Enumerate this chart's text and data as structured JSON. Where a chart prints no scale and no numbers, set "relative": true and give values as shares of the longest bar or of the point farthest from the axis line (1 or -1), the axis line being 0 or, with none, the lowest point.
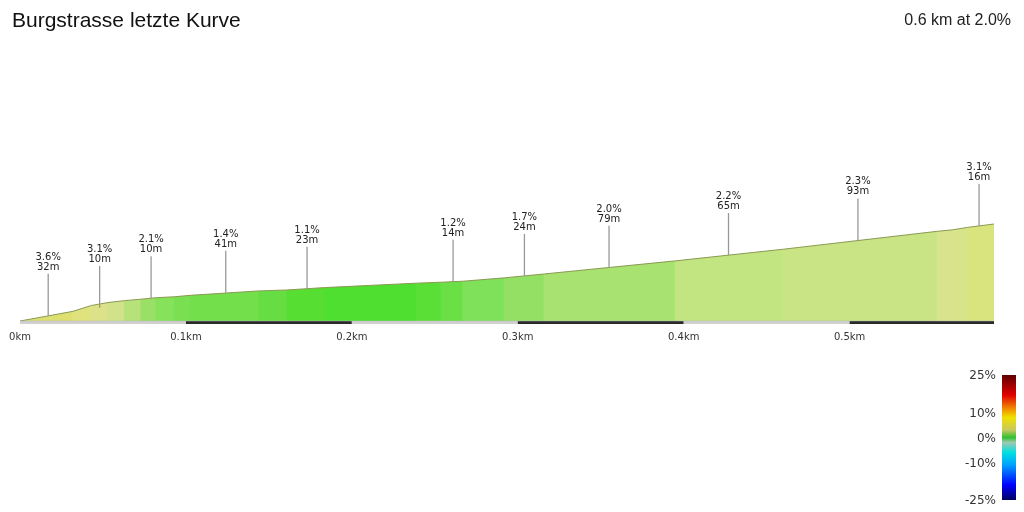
{
  "chart_data": {
    "type": "area",
    "title": "Burgstrasse letzte Kurve",
    "subtitle": "0.6 km at 2.0%",
    "relative": true,
    "x": [
      0,
      0.032,
      0.043,
      0.053,
      0.063,
      0.073,
      0.082,
      0.093,
      0.103,
      0.144,
      0.161,
      0.184,
      0.239,
      0.254,
      0.267,
      0.292,
      0.316,
      0.395,
      0.46,
      0.553,
      0.562,
      0.571,
      0.587
    ],
    "values": [
      0,
      0.1,
      0.16,
      0.19,
      0.21,
      0.225,
      0.24,
      0.25,
      0.265,
      0.31,
      0.32,
      0.345,
      0.39,
      0.4,
      0.41,
      0.445,
      0.485,
      0.62,
      0.74,
      0.925,
      0.94,
      0.965,
      1
    ],
    "colors": [
      "#dde070",
      "#e0e37d",
      "#dbe28a",
      "#d0e38b",
      "#b7e27a",
      "#98e066",
      "#86e25a",
      "#7ae052",
      "#72df4b",
      "#66dd42",
      "#56de33",
      "#4fdf30",
      "#59df36",
      "#6ae046",
      "#7fe05a",
      "#93e064",
      "#a8e371",
      "#c2e582",
      "#c8e484",
      "#d9e38d",
      "#d8e48a",
      "#d9e47e",
      "#d9e47e"
    ],
    "xlim": [
      0,
      0.587
    ],
    "xticks": [
      {
        "value": 0,
        "label": "0km"
      },
      {
        "value": 0.1,
        "label": "0.1km"
      },
      {
        "value": 0.2,
        "label": "0.2km"
      },
      {
        "value": 0.3,
        "label": "0.3km"
      },
      {
        "value": 0.4,
        "label": "0.4km"
      },
      {
        "value": 0.5,
        "label": "0.5km"
      }
    ],
    "annotations": [
      {
        "text": "3.6%\n32m",
        "x": 0.017,
        "y": 0.053
      },
      {
        "text": "3.1%\n10m",
        "x": 0.048,
        "y": 0.135
      },
      {
        "text": "2.1%\n10m",
        "x": 0.079,
        "y": 0.235
      },
      {
        "text": "1.4%\n41m",
        "x": 0.124,
        "y": 0.29
      },
      {
        "text": "1.1%\n23m",
        "x": 0.173,
        "y": 0.333
      },
      {
        "text": "1.2%\n14m",
        "x": 0.261,
        "y": 0.405
      },
      {
        "text": "1.7%\n24m",
        "x": 0.304,
        "y": 0.465
      },
      {
        "text": "2.0%\n79m",
        "x": 0.355,
        "y": 0.55
      },
      {
        "text": "2.2%\n65m",
        "x": 0.427,
        "y": 0.68
      },
      {
        "text": "2.3%\n93m",
        "x": 0.505,
        "y": 0.83
      },
      {
        "text": "3.1%\n16m",
        "x": 0.578,
        "y": 0.98
      }
    ],
    "clim": [
      -25,
      25
    ],
    "cticks": [
      {
        "value": 25,
        "label": "25%"
      },
      {
        "value": 10,
        "label": "10%"
      },
      {
        "value": 0,
        "label": "0%"
      },
      {
        "value": -10,
        "label": "-10%"
      },
      {
        "value": -25,
        "label": "-25%"
      }
    ]
  }
}
